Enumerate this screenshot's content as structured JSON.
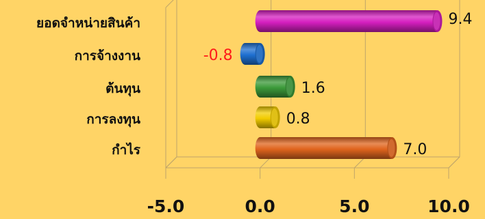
{
  "chart_data": {
    "type": "bar",
    "orientation": "horizontal",
    "style": "3d-cylinder",
    "categories": [
      "ยอดจำหน่ายสินค้า",
      "การจ้างงาน",
      "ต้นทุน",
      "การลงทุน",
      "กำไร"
    ],
    "values": [
      9.4,
      -0.8,
      1.6,
      0.8,
      7.0
    ],
    "value_labels": [
      "9.4",
      "-0.8",
      "1.6",
      "0.8",
      "7.0"
    ],
    "bar_colors": [
      "#D61FC0",
      "#1E6FD0",
      "#3C9A3A",
      "#F2CC00",
      "#E0651E"
    ],
    "negative_label_color": "#FF1A1A",
    "xlim": [
      -5,
      10
    ],
    "xticks": [
      -5,
      0,
      5,
      10
    ],
    "xtick_labels": [
      "-5.0",
      "0.0",
      "5.0",
      "10.0"
    ],
    "grid": true,
    "legend": false,
    "background": "#FFD466"
  }
}
